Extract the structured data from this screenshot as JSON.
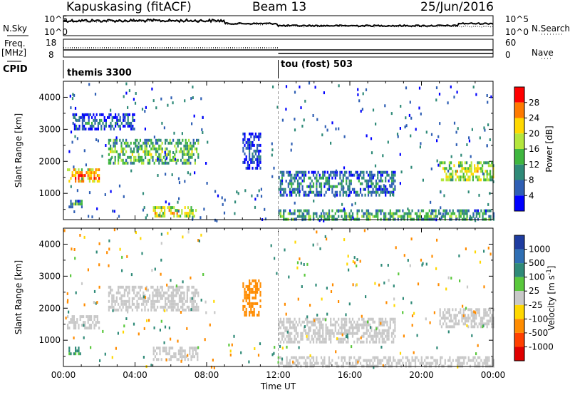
{
  "header": {
    "station": "Kapuskasing (fitACF)",
    "beam": "Beam 13",
    "date": "25/Jun/2016"
  },
  "left_labels": {
    "nsky": "N.Sky",
    "freq": "Freq.",
    "freq_unit": "[MHz]",
    "cpid": "CPID"
  },
  "right_labels": {
    "nsearch": "N.Search",
    "nave": "Nave"
  },
  "noise_axis": {
    "left_top": "10^5",
    "left_bottom": "10^0",
    "right_top": "10^5",
    "right_bottom": "10^0"
  },
  "freq_axis": {
    "left_top": "18",
    "left_bottom": "8",
    "right_top": "60",
    "right_bottom": "0"
  },
  "cpid_segments": [
    {
      "label": "themis 3300",
      "start": "00:00",
      "end": "12:00"
    },
    {
      "label": "tou (fost) 503",
      "start": "12:00",
      "end": "24:00"
    }
  ],
  "power_colorbar": {
    "label": "Power [dB]",
    "ticks": [
      "28",
      "24",
      "20",
      "16",
      "12",
      "8",
      "4"
    ],
    "colors": [
      "#ff0000",
      "#ff7a00",
      "#ffd800",
      "#b4e63c",
      "#3fb63f",
      "#2f8a78",
      "#2f5fb4",
      "#0000ff"
    ]
  },
  "velocity_colorbar": {
    "label": "Velocity [m s",
    "label_sup": "-1",
    "label_end": "]",
    "ticks": [
      "1000",
      "500",
      "100",
      "25",
      "-25",
      "-100",
      "-500",
      "-1000"
    ],
    "colors": [
      "#1e3ca0",
      "#2f6fb4",
      "#2f8a78",
      "#5ac83c",
      "#c8c8c8",
      "#ffd800",
      "#ff8c00",
      "#ff4000",
      "#e00000"
    ]
  },
  "chart_data": [
    {
      "type": "heatmap",
      "title": "",
      "xlabel": "Time UT",
      "ylabel": "Slant Range [km]",
      "xlim": [
        "00:00",
        "24:00"
      ],
      "ylim": [
        180,
        4500
      ],
      "x_ticks": [
        "00:00",
        "04:00",
        "08:00",
        "12:00",
        "16:00",
        "20:00",
        "00:00"
      ],
      "y_ticks": [
        "1000",
        "2000",
        "3000",
        "4000"
      ],
      "quantity": "Power [dB]",
      "echo_regions": [
        {
          "t": [
            0.2,
            2.0
          ],
          "range": [
            1380,
            1780
          ],
          "power": 26
        },
        {
          "t": [
            0.2,
            1.0
          ],
          "range": [
            600,
            800
          ],
          "power": 14
        },
        {
          "t": [
            2.5,
            7.5
          ],
          "range": [
            1900,
            2700
          ],
          "power": 16
        },
        {
          "t": [
            5.0,
            7.5
          ],
          "range": [
            250,
            600
          ],
          "power": 22
        },
        {
          "t": [
            10.0,
            11.0
          ],
          "range": [
            1800,
            2900
          ],
          "power": 6
        },
        {
          "t": [
            12.0,
            18.5
          ],
          "range": [
            950,
            1700
          ],
          "power": 10
        },
        {
          "t": [
            12.0,
            24.0
          ],
          "range": [
            180,
            500
          ],
          "power": 14
        },
        {
          "t": [
            21.0,
            24.0
          ],
          "range": [
            1400,
            2000
          ],
          "power": 20
        },
        {
          "t": [
            0.5,
            4.0
          ],
          "range": [
            3000,
            3500
          ],
          "power": 8
        }
      ]
    },
    {
      "type": "heatmap",
      "title": "",
      "xlabel": "Time UT",
      "ylabel": "Slant Range [km]",
      "xlim": [
        "00:00",
        "24:00"
      ],
      "ylim": [
        180,
        4500
      ],
      "x_ticks": [
        "00:00",
        "04:00",
        "08:00",
        "12:00",
        "16:00",
        "20:00",
        "00:00"
      ],
      "y_ticks": [
        "1000",
        "2000",
        "3000",
        "4000"
      ],
      "quantity": "Velocity [m s-1]",
      "echo_regions": [
        {
          "t": [
            0.2,
            2.0
          ],
          "range": [
            1380,
            1780
          ],
          "velocity": 0
        },
        {
          "t": [
            0.2,
            1.0
          ],
          "range": [
            600,
            800
          ],
          "velocity": 200
        },
        {
          "t": [
            2.5,
            7.5
          ],
          "range": [
            1900,
            2700
          ],
          "velocity": 0
        },
        {
          "t": [
            5.0,
            7.5
          ],
          "range": [
            400,
            800
          ],
          "velocity": 0
        },
        {
          "t": [
            10.0,
            11.0
          ],
          "range": [
            1800,
            2900
          ],
          "velocity": -300
        },
        {
          "t": [
            12.0,
            18.5
          ],
          "range": [
            950,
            1700
          ],
          "velocity": 0
        },
        {
          "t": [
            12.0,
            24.0
          ],
          "range": [
            180,
            500
          ],
          "velocity": 0
        },
        {
          "t": [
            21.0,
            24.0
          ],
          "range": [
            1400,
            2000
          ],
          "velocity": 0
        }
      ]
    }
  ]
}
